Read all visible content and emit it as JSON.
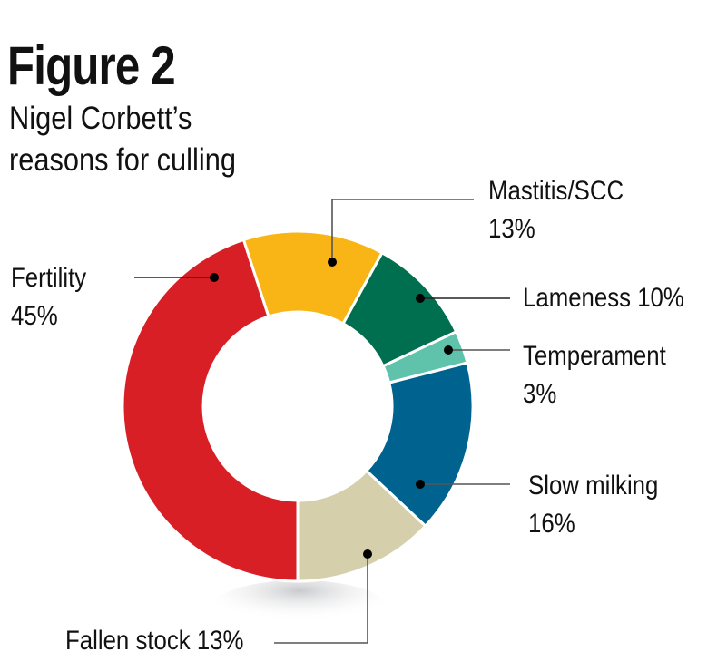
{
  "figure": {
    "title": "Figure 2",
    "subtitle_line1": "Nigel Corbett’s",
    "subtitle_line2": "reasons for culling"
  },
  "labels": {
    "fertility_name": "Fertility",
    "fertility_value": "45%",
    "mastitis_name": "Mastitis/SCC",
    "mastitis_value": "13%",
    "lameness": "Lameness 10%",
    "temperament_name": "Temperament",
    "temperament_value": "3%",
    "slow_milking_name": "Slow milking",
    "slow_milking_value": "16%",
    "fallen_stock": "Fallen stock 13%"
  },
  "chart_data": {
    "type": "pie",
    "variant": "donut",
    "title": "Figure 2",
    "subtitle": "Nigel Corbett’s reasons for culling",
    "start_angle_deg": -18,
    "direction": "clockwise",
    "categories": [
      "Mastitis/SCC",
      "Lameness",
      "Temperament",
      "Slow milking",
      "Fallen stock",
      "Fertility"
    ],
    "values": [
      13,
      10,
      3,
      16,
      13,
      45
    ],
    "unit": "%",
    "colors": [
      "#f9b415",
      "#006f4f",
      "#5fc3ac",
      "#00628f",
      "#d5d0ab",
      "#d91f26"
    ],
    "legend": "callout labels with leader lines"
  }
}
